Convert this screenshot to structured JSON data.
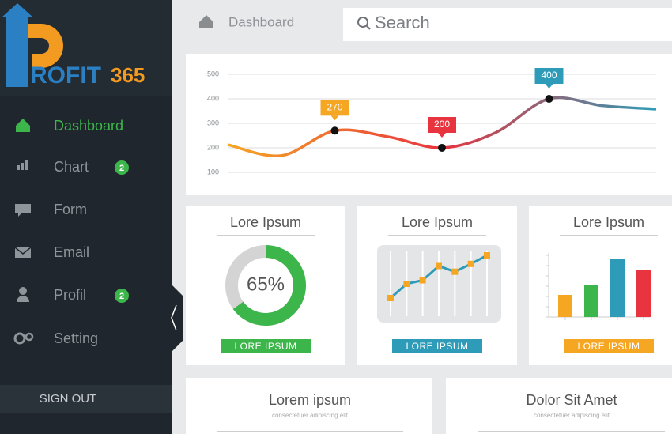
{
  "logo": {
    "brand": "ROFIT",
    "number": "365"
  },
  "nav": [
    {
      "label": "Dashboard",
      "badge": null
    },
    {
      "label": "Chart",
      "badge": 2
    },
    {
      "label": "Form",
      "badge": null
    },
    {
      "label": "Email",
      "badge": null
    },
    {
      "label": "Profil",
      "badge": 2
    },
    {
      "label": "Setting",
      "badge": null
    }
  ],
  "sign_out": "SIGN OUT",
  "breadcrumb": "Dashboard",
  "search_placeholder": "Search",
  "main_chart": {
    "type": "line",
    "ylim": [
      100,
      500
    ],
    "yticks": [
      100,
      200,
      300,
      400,
      500
    ],
    "values": [
      213,
      168,
      270,
      245,
      200,
      262,
      400,
      372,
      358
    ],
    "tag_colors": [
      null,
      null,
      "#f5a623",
      null,
      "#e8343f",
      null,
      "#2e9cb8",
      null,
      null
    ],
    "gradient": [
      "#f5a623",
      "#e8343f",
      "#2e9cb8"
    ]
  },
  "cards": [
    {
      "title": "Lore Ipsum",
      "button": "LORE IPSUM",
      "color": "#3cb54a",
      "type": "donut",
      "value": 65,
      "value_label": "65%",
      "max": 100
    },
    {
      "title": "Lore Ipsum",
      "button": "LORE IPSUM",
      "color": "#2e9cb8",
      "type": "line",
      "values": [
        20,
        40,
        45,
        65,
        57,
        68,
        80
      ],
      "ylim": [
        0,
        100
      ],
      "marker_color": "#f5a623"
    },
    {
      "title": "Lore Ipsum",
      "button": "LORE IPSUM",
      "color": "#f5a623",
      "type": "bar",
      "values": [
        28,
        41,
        74,
        59
      ],
      "ylim": [
        0,
        80
      ],
      "colors": [
        "#f5a623",
        "#3cb54a",
        "#2e9cb8",
        "#e8343f"
      ]
    }
  ],
  "bottom_cards": [
    {
      "title": "Lorem ipsum",
      "subtitle": "consectetuer adipiscing elit"
    },
    {
      "title": "Dolor Sit Amet",
      "subtitle": "consectetuer adipiscing elit"
    }
  ]
}
